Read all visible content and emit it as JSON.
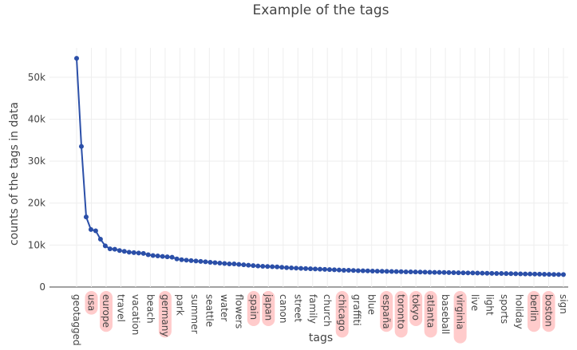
{
  "chart_data": {
    "type": "line",
    "title": "Example of the tags",
    "xlabel": "tags",
    "ylabel": "counts of the tags in data",
    "ylim": [
      0,
      57000
    ],
    "yticks": [
      0,
      10000,
      20000,
      30000,
      40000,
      50000
    ],
    "ytick_labels": [
      "0",
      "10k",
      "20k",
      "30k",
      "40k",
      "50k"
    ],
    "line_color": "#2b4fa8",
    "highlight_color": "#ff6b6b",
    "labeled_tags": [
      "geotagged",
      "usa",
      "europe",
      "travel",
      "vacation",
      "beach",
      "germany",
      "park",
      "summer",
      "seattle",
      "water",
      "flowers",
      "spain",
      "japan",
      "canon",
      "street",
      "family",
      "church",
      "chicago",
      "graffiti",
      "blue",
      "españa",
      "toronto",
      "tokyo",
      "atlanta",
      "baseball",
      "virginia",
      "live",
      "light",
      "sports",
      "holiday",
      "berlin",
      "boston",
      "sign"
    ],
    "highlighted_tags": [
      "usa",
      "europe",
      "germany",
      "spain",
      "japan",
      "chicago",
      "españa",
      "toronto",
      "tokyo",
      "atlanta",
      "virginia",
      "berlin",
      "boston"
    ],
    "values": [
      54500,
      33500,
      16700,
      13700,
      13400,
      11400,
      9800,
      9100,
      9000,
      8700,
      8500,
      8300,
      8200,
      8100,
      8000,
      7700,
      7500,
      7400,
      7300,
      7200,
      7100,
      6700,
      6500,
      6400,
      6300,
      6200,
      6100,
      6000,
      5900,
      5800,
      5700,
      5600,
      5500,
      5500,
      5400,
      5300,
      5200,
      5100,
      5000,
      4950,
      4900,
      4850,
      4800,
      4700,
      4600,
      4550,
      4500,
      4450,
      4400,
      4350,
      4300,
      4250,
      4200,
      4150,
      4100,
      4050,
      4000,
      3980,
      3950,
      3900,
      3870,
      3840,
      3810,
      3780,
      3750,
      3720,
      3700,
      3680,
      3650,
      3620,
      3600,
      3580,
      3560,
      3540,
      3520,
      3500,
      3480,
      3460,
      3440,
      3420,
      3400,
      3380,
      3360,
      3340,
      3320,
      3300,
      3280,
      3260,
      3240,
      3220,
      3200,
      3180,
      3160,
      3140,
      3120,
      3100,
      3080,
      3060,
      3040,
      3020,
      3000,
      2980,
      2960
    ]
  }
}
